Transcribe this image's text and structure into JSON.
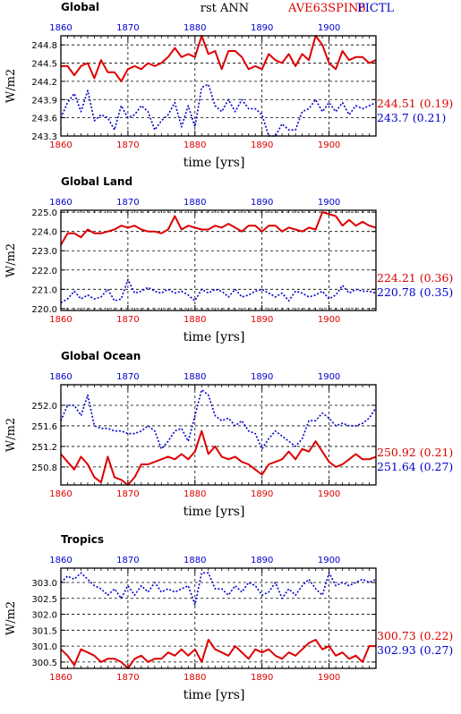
{
  "header": {
    "title": "rst  ANN",
    "legend_a": "AVE63SPIN6",
    "legend_b": "PICTL",
    "legend_a_color": "#dd0000",
    "legend_b_color": "#0000cc"
  },
  "colors": {
    "red": "#dd0000",
    "blue": "#0000cc"
  },
  "chart_data": [
    {
      "type": "line",
      "title": "Global",
      "xlabel": "time [yrs]",
      "ylabel": "W/m2",
      "xlim": [
        1860,
        1907
      ],
      "ylim": [
        243.3,
        244.95
      ],
      "yticks": [
        "243.3",
        "243.6",
        "243.9",
        "244.2",
        "244.5",
        "244.8"
      ],
      "ytick_values": [
        243.3,
        243.6,
        243.9,
        244.2,
        244.5,
        244.8
      ],
      "xticks": [
        "1860",
        "1870",
        "1880",
        "1890",
        "1900"
      ],
      "grid": true,
      "series": [
        {
          "color": "#dd0000",
          "style": "solid",
          "stat": "244.51 (0.19)",
          "start": 1860,
          "values": [
            244.45,
            244.45,
            244.3,
            244.45,
            244.5,
            244.25,
            244.55,
            244.35,
            244.35,
            244.2,
            244.4,
            244.45,
            244.4,
            244.5,
            244.45,
            244.5,
            244.6,
            244.75,
            244.6,
            244.65,
            244.6,
            244.95,
            244.65,
            244.7,
            244.4,
            244.7,
            244.7,
            244.6,
            244.4,
            244.45,
            244.4,
            244.65,
            244.55,
            244.5,
            244.65,
            244.45,
            244.65,
            244.55,
            244.95,
            244.8,
            244.5,
            244.4,
            244.7,
            244.55,
            244.6,
            244.6,
            244.5,
            244.55
          ]
        },
        {
          "color": "#0000cc",
          "style": "dotted",
          "stat": "243.7 (0.21)",
          "start": 1860,
          "values": [
            243.6,
            243.85,
            244.0,
            243.7,
            244.05,
            243.55,
            243.65,
            243.6,
            243.4,
            243.8,
            243.6,
            243.65,
            243.8,
            243.7,
            243.4,
            243.55,
            243.65,
            243.85,
            243.45,
            243.8,
            243.45,
            244.1,
            244.15,
            243.8,
            243.7,
            243.9,
            243.7,
            243.9,
            243.75,
            243.75,
            243.65,
            243.3,
            243.3,
            243.5,
            243.4,
            243.4,
            243.7,
            243.75,
            243.9,
            243.7,
            243.85,
            243.7,
            243.85,
            243.65,
            243.8,
            243.75,
            243.8,
            243.85
          ]
        }
      ]
    },
    {
      "type": "line",
      "title": "Global Land",
      "xlabel": "time [yrs]",
      "ylabel": "W/m2",
      "xlim": [
        1860,
        1907
      ],
      "ylim": [
        219.9,
        225.1
      ],
      "yticks": [
        "220.0",
        "221.0",
        "222.0",
        "223.0",
        "224.0",
        "225.0"
      ],
      "ytick_values": [
        220.0,
        221.0,
        222.0,
        223.0,
        224.0,
        225.0
      ],
      "xticks": [
        "1860",
        "1870",
        "1880",
        "1890",
        "1900"
      ],
      "grid": true,
      "series": [
        {
          "color": "#dd0000",
          "style": "solid",
          "stat": "224.21 (0.36)",
          "start": 1860,
          "values": [
            223.3,
            223.9,
            223.9,
            223.7,
            224.1,
            223.9,
            223.9,
            224.0,
            224.1,
            224.3,
            224.2,
            224.3,
            224.1,
            224.0,
            224.0,
            223.9,
            224.1,
            224.8,
            224.1,
            224.3,
            224.2,
            224.1,
            224.1,
            224.3,
            224.2,
            224.4,
            224.2,
            224.0,
            224.3,
            224.3,
            224.0,
            224.3,
            224.3,
            224.0,
            224.2,
            224.1,
            224.0,
            224.2,
            224.1,
            225.0,
            224.9,
            224.8,
            224.3,
            224.6,
            224.3,
            224.5,
            224.3,
            224.2
          ]
        },
        {
          "color": "#0000cc",
          "style": "dotted",
          "stat": "220.78 (0.35)",
          "start": 1860,
          "values": [
            220.3,
            220.5,
            220.9,
            220.5,
            220.7,
            220.5,
            220.6,
            221.0,
            220.4,
            220.5,
            221.5,
            220.8,
            220.9,
            221.1,
            220.9,
            220.8,
            221.0,
            220.8,
            220.9,
            220.7,
            220.4,
            221.0,
            220.8,
            221.0,
            220.9,
            220.6,
            221.0,
            220.6,
            220.7,
            220.9,
            221.0,
            220.8,
            220.6,
            220.8,
            220.4,
            220.9,
            220.8,
            220.6,
            220.7,
            220.9,
            220.5,
            220.7,
            221.2,
            220.8,
            221.0,
            220.9,
            220.9,
            220.8
          ]
        }
      ]
    },
    {
      "type": "line",
      "title": "Global Ocean",
      "xlabel": "time [yrs]",
      "ylabel": "W/m2",
      "xlim": [
        1860,
        1907
      ],
      "ylim": [
        250.45,
        252.4
      ],
      "yticks": [
        "250.8",
        "251.2",
        "251.6",
        "252.0"
      ],
      "ytick_values": [
        250.8,
        251.2,
        251.6,
        252.0
      ],
      "xticks": [
        "1860",
        "1870",
        "1880",
        "1890",
        "1900"
      ],
      "grid": true,
      "series": [
        {
          "color": "#dd0000",
          "style": "solid",
          "stat": "250.92 (0.21)",
          "start": 1860,
          "values": [
            251.05,
            250.9,
            250.75,
            251.0,
            250.85,
            250.6,
            250.5,
            251.0,
            250.6,
            250.55,
            250.45,
            250.6,
            250.85,
            250.85,
            250.9,
            250.95,
            251.0,
            250.95,
            251.05,
            250.95,
            251.1,
            251.5,
            251.05,
            251.2,
            251.0,
            250.95,
            251.0,
            250.9,
            250.85,
            250.75,
            250.65,
            250.85,
            250.9,
            250.95,
            251.1,
            250.95,
            251.15,
            251.1,
            251.3,
            251.1,
            250.9,
            250.8,
            250.85,
            250.95,
            251.05,
            250.95,
            250.95,
            251.0
          ]
        },
        {
          "color": "#0000cc",
          "style": "dotted",
          "stat": "251.64 (0.27)",
          "start": 1860,
          "values": [
            251.7,
            252.0,
            252.0,
            251.8,
            252.2,
            251.6,
            251.55,
            251.55,
            251.5,
            251.5,
            251.45,
            251.45,
            251.5,
            251.6,
            251.5,
            251.15,
            251.3,
            251.5,
            251.55,
            251.3,
            251.8,
            252.3,
            252.2,
            251.8,
            251.7,
            251.75,
            251.6,
            251.7,
            251.5,
            251.45,
            251.15,
            251.35,
            251.5,
            251.4,
            251.3,
            251.2,
            251.35,
            251.7,
            251.7,
            251.85,
            251.75,
            251.6,
            251.65,
            251.6,
            251.6,
            251.65,
            251.75,
            251.95
          ]
        }
      ]
    },
    {
      "type": "line",
      "title": "Tropics",
      "xlabel": "time [yrs]",
      "ylabel": "W/m2",
      "xlim": [
        1860,
        1907
      ],
      "ylim": [
        300.3,
        303.45
      ],
      "yticks": [
        "300.5",
        "301.0",
        "301.5",
        "302.0",
        "302.5",
        "303.0"
      ],
      "ytick_values": [
        300.5,
        301.0,
        301.5,
        302.0,
        302.5,
        303.0
      ],
      "xticks": [
        "1860",
        "1870",
        "1880",
        "1890",
        "1900"
      ],
      "grid": true,
      "series": [
        {
          "color": "#dd0000",
          "style": "solid",
          "stat": "300.73 (0.22)",
          "start": 1860,
          "values": [
            300.9,
            300.7,
            300.4,
            300.9,
            300.8,
            300.7,
            300.5,
            300.6,
            300.6,
            300.5,
            300.3,
            300.6,
            300.7,
            300.5,
            300.6,
            300.6,
            300.8,
            300.7,
            300.9,
            300.7,
            300.9,
            300.5,
            301.2,
            300.9,
            300.8,
            300.7,
            301.0,
            300.8,
            300.6,
            300.9,
            300.8,
            300.9,
            300.7,
            300.6,
            300.8,
            300.7,
            300.9,
            301.1,
            301.2,
            300.9,
            301.0,
            300.7,
            300.8,
            300.6,
            300.7,
            300.5,
            301.0,
            301.0
          ]
        },
        {
          "color": "#0000cc",
          "style": "dotted",
          "stat": "302.93 (0.27)",
          "start": 1860,
          "values": [
            303.0,
            303.2,
            303.1,
            303.3,
            303.1,
            302.9,
            302.8,
            302.6,
            302.8,
            302.5,
            302.9,
            302.6,
            302.9,
            302.7,
            303.0,
            302.7,
            302.8,
            302.7,
            302.8,
            302.9,
            302.3,
            303.3,
            303.3,
            302.8,
            302.8,
            302.6,
            302.9,
            302.7,
            303.0,
            302.9,
            302.6,
            302.7,
            303.0,
            302.5,
            302.8,
            302.6,
            302.9,
            303.1,
            302.8,
            302.6,
            303.3,
            302.9,
            303.0,
            302.9,
            303.0,
            303.1,
            303.0,
            303.1
          ]
        }
      ]
    }
  ]
}
